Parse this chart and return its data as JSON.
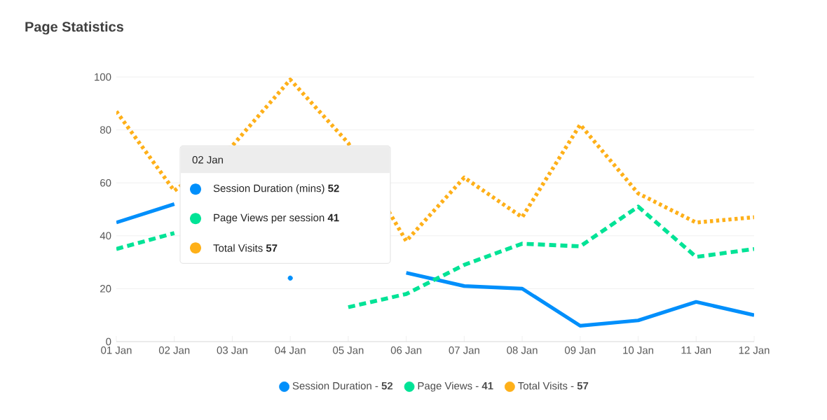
{
  "chart_data": {
    "type": "line",
    "title": "Page Statistics",
    "categories": [
      "01 Jan",
      "02 Jan",
      "03 Jan",
      "04 Jan",
      "05 Jan",
      "06 Jan",
      "07 Jan",
      "08 Jan",
      "09 Jan",
      "10 Jan",
      "11 Jan",
      "12 Jan"
    ],
    "series": [
      {
        "name": "Session Duration - **52**",
        "color": "#008ffb",
        "line_style": "solid",
        "values": [
          45,
          52,
          null,
          24,
          null,
          26,
          21,
          20,
          6,
          8,
          15,
          10
        ]
      },
      {
        "name": "Page Views - **41**",
        "color": "#00e396",
        "line_style": "dashed",
        "values": [
          35,
          41,
          null,
          null,
          13,
          18,
          29,
          37,
          36,
          51,
          32,
          35
        ]
      },
      {
        "name": "Total Visits - **57**",
        "color": "#feb019",
        "line_style": "dotted",
        "values": [
          87,
          57,
          74,
          99,
          75,
          38,
          62,
          47,
          82,
          56,
          45,
          47
        ]
      }
    ],
    "ylim": [
      0,
      100
    ],
    "yticks": [
      0,
      20,
      40,
      60,
      80,
      100
    ],
    "grid": "y",
    "legend": "bottom",
    "marker": "none",
    "annotations": [
      "02 Jan",
      "Session Duration (mins) **52**",
      "Page Views per session **41**",
      "Total Visits **57**"
    ]
  }
}
